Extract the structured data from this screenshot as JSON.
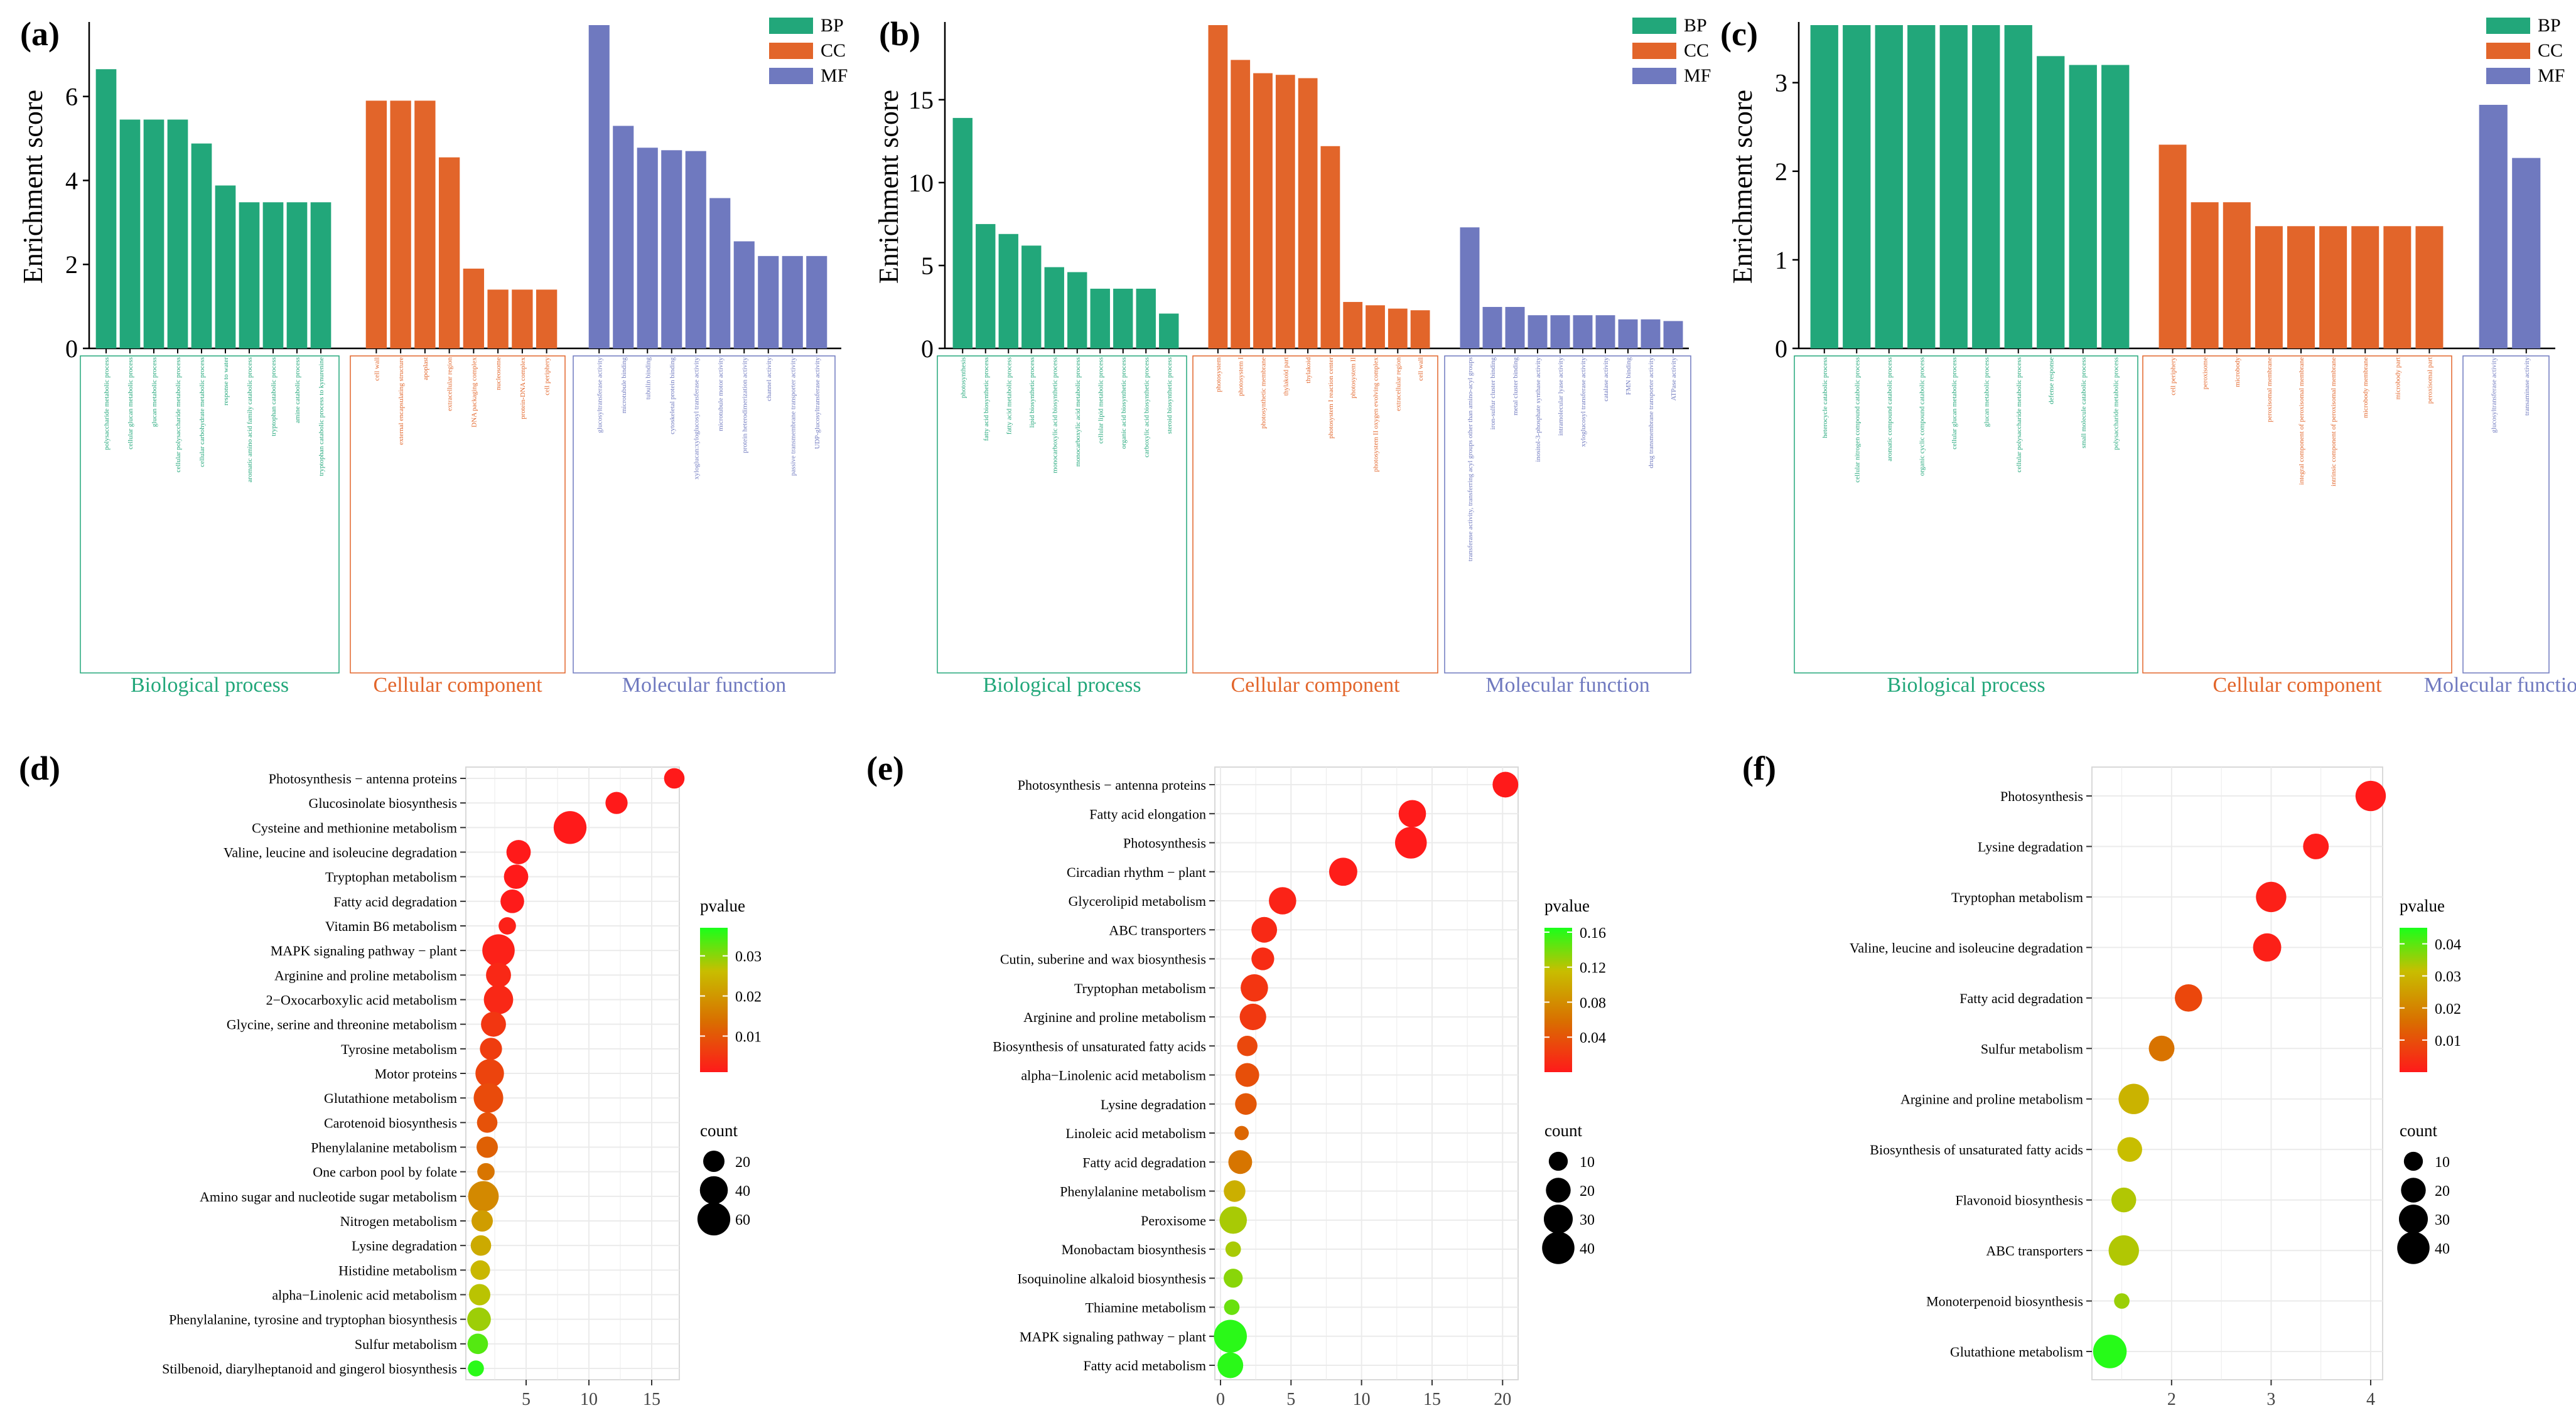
{
  "colors": {
    "BP": "#22a77a",
    "CC": "#e2652a",
    "MF": "#6f79bf",
    "axis": "#000000",
    "grid": "#ebebeb",
    "panel_border": "#d9d9d9",
    "pvalue_low": "#ff1a1a",
    "pvalue_mid": "#d9a300",
    "pvalue_high": "#1aff1a"
  },
  "legend_labels": {
    "BP": "BP",
    "CC": "CC",
    "MF": "MF"
  },
  "section_labels": {
    "bp": "Biological process",
    "cc": "Cellular component",
    "mf": "Molecular function"
  },
  "chart_data": [
    {
      "panel": "(a)",
      "type": "bar",
      "ylabel": "Enrichment score",
      "ylim": [
        0,
        7.7
      ],
      "yticks": [
        0,
        2,
        4,
        6
      ],
      "series": [
        {
          "name": "BP",
          "categories": [
            "polysaccharide metabolic process",
            "cellular glucan metabolic process",
            "glucan metabolic process",
            "cellular polysaccharide metabolic process",
            "cellular carbohydrate metabolic process",
            "response to water",
            "aromatic amino acid family catabolic process",
            "tryptophan catabolic process",
            "amine catabolic process",
            "tryptophan catabolic process to kynurenine"
          ],
          "values": [
            6.65,
            5.45,
            5.45,
            5.45,
            4.88,
            3.88,
            3.48,
            3.48,
            3.48,
            3.48
          ]
        },
        {
          "name": "CC",
          "categories": [
            "cell wall",
            "external encapsulating structure",
            "apoplast",
            "extracellular region",
            "DNA packaging complex",
            "nucleosome",
            "protein-DNA complex",
            "cell periphery"
          ],
          "values": [
            5.9,
            5.9,
            5.9,
            4.55,
            1.9,
            1.4,
            1.4,
            1.4
          ]
        },
        {
          "name": "MF",
          "categories": [
            "glucosyltransferase activity",
            "microtubule binding",
            "tubulin binding",
            "cytoskeletal protein binding",
            "xyloglucan:xyloglucosyl transferase activity",
            "microtubule motor activity",
            "protein heterodimerization activity",
            "channel activity",
            "passive transmembrane transporter activity",
            "UDP-glucosyltransferase activity"
          ],
          "values": [
            7.7,
            5.3,
            4.78,
            4.72,
            4.7,
            3.58,
            2.55,
            2.2,
            2.2,
            2.2
          ]
        }
      ]
    },
    {
      "panel": "(b)",
      "type": "bar",
      "ylabel": "Enrichment score",
      "ylim": [
        0,
        19.5
      ],
      "yticks": [
        0,
        5,
        10,
        15
      ],
      "series": [
        {
          "name": "BP",
          "categories": [
            "photosynthesis",
            "fatty acid biosynthetic process",
            "fatty acid metabolic process",
            "lipid biosynthetic process",
            "monocarboxylic acid biosynthetic process",
            "monocarboxylic acid metabolic process",
            "cellular lipid metabolic process",
            "organic acid biosynthetic process",
            "carboxylic acid biosynthetic process",
            "steroid biosynthetic process"
          ],
          "values": [
            13.9,
            7.5,
            6.9,
            6.2,
            4.9,
            4.6,
            3.6,
            3.6,
            3.6,
            2.1
          ]
        },
        {
          "name": "CC",
          "categories": [
            "photosystem",
            "photosystem I",
            "photosynthetic membrane",
            "thylakoid part",
            "thylakoid",
            "photosystem I reaction center",
            "photosystem II",
            "photosystem II oxygen evolving complex",
            "extracellular region",
            "cell wall"
          ],
          "values": [
            19.5,
            17.4,
            16.6,
            16.5,
            16.3,
            12.2,
            2.8,
            2.6,
            2.4,
            2.3
          ]
        },
        {
          "name": "MF",
          "categories": [
            "transferase activity, transferring acyl groups other than amino-acyl groups",
            "iron-sulfur cluster binding",
            "metal cluster binding",
            "inositol-3-phosphate synthase activity",
            "intramolecular lyase activity",
            "xyloglucosyl transferase activity",
            "catalase activity",
            "FMN binding",
            "drug transmembrane transporter activity",
            "ATPase activity"
          ],
          "values": [
            7.3,
            2.5,
            2.5,
            2.0,
            2.0,
            2.0,
            2.0,
            1.75,
            1.75,
            1.65
          ]
        }
      ]
    },
    {
      "panel": "(c)",
      "type": "bar",
      "ylabel": "Enrichment score",
      "ylim": [
        0,
        3.65
      ],
      "yticks": [
        0,
        1,
        2,
        3
      ],
      "series": [
        {
          "name": "BP",
          "categories": [
            "heterocycle catabolic process",
            "cellular nitrogen compound catabolic process",
            "aromatic compound catabolic process",
            "organic cyclic compound catabolic process",
            "cellular glucan metabolic process",
            "glucan metabolic process",
            "cellular polysaccharide metabolic process",
            "defense response",
            "small molecule catabolic process",
            "polysaccharide metabolic process"
          ],
          "values": [
            3.65,
            3.65,
            3.65,
            3.65,
            3.65,
            3.65,
            3.65,
            3.3,
            3.2,
            3.2
          ]
        },
        {
          "name": "CC",
          "categories": [
            "cell periphery",
            "peroxisome",
            "microbody",
            "peroxisomal membrane",
            "integral component of peroxisomal membrane",
            "intrinsic component of peroxisomal membrane",
            "microbody membrane",
            "microbody part",
            "peroxisomal part"
          ],
          "values": [
            2.3,
            1.65,
            1.65,
            1.38,
            1.38,
            1.38,
            1.38,
            1.38,
            1.38
          ]
        },
        {
          "name": "MF",
          "categories": [
            "glucosyltransferase activity",
            "transaminase activity"
          ],
          "values": [
            2.75,
            2.15
          ]
        }
      ]
    },
    {
      "panel": "(d)",
      "type": "scatter",
      "xlim": [
        0.2,
        17.2
      ],
      "xticks": [
        5,
        10,
        15
      ],
      "color_title": "pvalue",
      "size_title": "count",
      "color_ticks": [
        0.01,
        0.02,
        0.03
      ],
      "color_range": [
        0.001,
        0.037
      ],
      "size_ticks": [
        20,
        40,
        60
      ],
      "size_range": [
        5,
        65
      ],
      "points": [
        {
          "label": "Photosynthesis − antenna proteins",
          "x": 16.8,
          "count": 18,
          "p": 0.0005
        },
        {
          "label": "Glucosinolate biosynthesis",
          "x": 12.2,
          "count": 22,
          "p": 0.0008
        },
        {
          "label": "Cysteine and methionine metabolism",
          "x": 8.5,
          "count": 60,
          "p": 0.001
        },
        {
          "label": "Valine, leucine and isoleucine degradation",
          "x": 4.4,
          "count": 28,
          "p": 0.001
        },
        {
          "label": "Tryptophan metabolism",
          "x": 4.2,
          "count": 28,
          "p": 0.001
        },
        {
          "label": "Fatty acid degradation",
          "x": 3.9,
          "count": 26,
          "p": 0.0012
        },
        {
          "label": "Vitamin B6 metabolism",
          "x": 3.5,
          "count": 12,
          "p": 0.002
        },
        {
          "label": "MAPK signaling pathway − plant",
          "x": 2.8,
          "count": 58,
          "p": 0.002
        },
        {
          "label": "Arginine and proline metabolism",
          "x": 2.8,
          "count": 30,
          "p": 0.003
        },
        {
          "label": "2−Oxocarboxylic acid metabolism",
          "x": 2.8,
          "count": 45,
          "p": 0.003
        },
        {
          "label": "Glycine, serine and threonine metabolism",
          "x": 2.4,
          "count": 30,
          "p": 0.005
        },
        {
          "label": "Tyrosine metabolism",
          "x": 2.2,
          "count": 22,
          "p": 0.006
        },
        {
          "label": "Motor proteins",
          "x": 2.1,
          "count": 42,
          "p": 0.007
        },
        {
          "label": "Glutathione metabolism",
          "x": 2.0,
          "count": 46,
          "p": 0.008
        },
        {
          "label": "Carotenoid biosynthesis",
          "x": 1.9,
          "count": 18,
          "p": 0.009
        },
        {
          "label": "Phenylalanine metabolism",
          "x": 1.9,
          "count": 20,
          "p": 0.011
        },
        {
          "label": "One carbon pool by folate",
          "x": 1.8,
          "count": 12,
          "p": 0.014
        },
        {
          "label": "Amino sugar and nucleotide sugar metabolism",
          "x": 1.6,
          "count": 50,
          "p": 0.017
        },
        {
          "label": "Nitrogen metabolism",
          "x": 1.5,
          "count": 20,
          "p": 0.02
        },
        {
          "label": "Lysine degradation",
          "x": 1.4,
          "count": 18,
          "p": 0.022
        },
        {
          "label": "Histidine metabolism",
          "x": 1.35,
          "count": 16,
          "p": 0.024
        },
        {
          "label": "alpha−Linolenic acid metabolism",
          "x": 1.3,
          "count": 20,
          "p": 0.026
        },
        {
          "label": "Phenylalanine, tyrosine and tryptophan biosynthesis",
          "x": 1.25,
          "count": 26,
          "p": 0.028
        },
        {
          "label": "Sulfur metabolism",
          "x": 1.15,
          "count": 18,
          "p": 0.033
        },
        {
          "label": "Stilbenoid, diarylheptanoid and gingerol biosynthesis",
          "x": 1.0,
          "count": 10,
          "p": 0.036
        }
      ]
    },
    {
      "panel": "(e)",
      "type": "scatter",
      "xlim": [
        -0.4,
        21.1
      ],
      "xticks": [
        0,
        5,
        10,
        15,
        20
      ],
      "color_title": "pvalue",
      "size_title": "count",
      "color_ticks": [
        0.04,
        0.08,
        0.12,
        0.16
      ],
      "color_range": [
        0.0,
        0.165
      ],
      "size_ticks": [
        10,
        20,
        30,
        40
      ],
      "size_range": [
        3,
        45
      ],
      "points": [
        {
          "label": "Photosynthesis − antenna proteins",
          "x": 20.2,
          "count": 22,
          "p": 0.0001
        },
        {
          "label": "Fatty acid elongation",
          "x": 13.6,
          "count": 26,
          "p": 0.0005
        },
        {
          "label": "Photosynthesis",
          "x": 13.5,
          "count": 38,
          "p": 0.0005
        },
        {
          "label": "Circadian rhythm − plant",
          "x": 8.7,
          "count": 28,
          "p": 0.002
        },
        {
          "label": "Glycerolipid metabolism",
          "x": 4.4,
          "count": 26,
          "p": 0.006
        },
        {
          "label": "ABC transporters",
          "x": 3.1,
          "count": 22,
          "p": 0.01
        },
        {
          "label": "Cutin, suberine and wax biosynthesis",
          "x": 3.0,
          "count": 16,
          "p": 0.012
        },
        {
          "label": "Tryptophan metabolism",
          "x": 2.4,
          "count": 26,
          "p": 0.018
        },
        {
          "label": "Arginine and proline metabolism",
          "x": 2.3,
          "count": 24,
          "p": 0.02
        },
        {
          "label": "Biosynthesis of unsaturated fatty acids",
          "x": 1.9,
          "count": 12,
          "p": 0.03
        },
        {
          "label": "alpha−Linolenic acid metabolism",
          "x": 1.9,
          "count": 18,
          "p": 0.035
        },
        {
          "label": "Lysine degradation",
          "x": 1.8,
          "count": 14,
          "p": 0.04
        },
        {
          "label": "Linoleic acid metabolism",
          "x": 1.5,
          "count": 5,
          "p": 0.05
        },
        {
          "label": "Fatty acid degradation",
          "x": 1.4,
          "count": 18,
          "p": 0.06
        },
        {
          "label": "Phenylalanine metabolism",
          "x": 1.0,
          "count": 14,
          "p": 0.1
        },
        {
          "label": "Peroxisome",
          "x": 0.9,
          "count": 26,
          "p": 0.12
        },
        {
          "label": "Monobactam biosynthesis",
          "x": 0.9,
          "count": 6,
          "p": 0.12
        },
        {
          "label": "Isoquinoline alkaloid biosynthesis",
          "x": 0.9,
          "count": 10,
          "p": 0.13
        },
        {
          "label": "Thiamine metabolism",
          "x": 0.8,
          "count": 6,
          "p": 0.14
        },
        {
          "label": "MAPK signaling pathway − plant",
          "x": 0.7,
          "count": 42,
          "p": 0.16
        },
        {
          "label": "Fatty acid metabolism",
          "x": 0.7,
          "count": 22,
          "p": 0.16
        }
      ]
    },
    {
      "panel": "(f)",
      "type": "scatter",
      "xlim": [
        1.2,
        4.12
      ],
      "xticks": [
        2,
        3,
        4
      ],
      "color_title": "pvalue",
      "size_title": "count",
      "color_ticks": [
        0.01,
        0.02,
        0.03,
        0.04
      ],
      "color_range": [
        0.0,
        0.045
      ],
      "size_ticks": [
        10,
        20,
        30,
        40
      ],
      "size_range": [
        3,
        45
      ],
      "points": [
        {
          "label": "Photosynthesis",
          "x": 4.0,
          "count": 34,
          "p": 0.0001
        },
        {
          "label": "Lysine degradation",
          "x": 3.45,
          "count": 22,
          "p": 0.0005
        },
        {
          "label": "Tryptophan metabolism",
          "x": 3.0,
          "count": 34,
          "p": 0.001
        },
        {
          "label": "Valine, leucine and isoleucine degradation",
          "x": 2.96,
          "count": 28,
          "p": 0.001
        },
        {
          "label": "Fatty acid degradation",
          "x": 2.17,
          "count": 26,
          "p": 0.008
        },
        {
          "label": "Sulfur metabolism",
          "x": 1.9,
          "count": 22,
          "p": 0.016
        },
        {
          "label": "Arginine and proline metabolism",
          "x": 1.62,
          "count": 34,
          "p": 0.028
        },
        {
          "label": "Biosynthesis of unsaturated fatty acids",
          "x": 1.58,
          "count": 20,
          "p": 0.03
        },
        {
          "label": "Flavonoid biosynthesis",
          "x": 1.52,
          "count": 20,
          "p": 0.032
        },
        {
          "label": "ABC transporters",
          "x": 1.52,
          "count": 34,
          "p": 0.032
        },
        {
          "label": "Monoterpenoid biosynthesis",
          "x": 1.5,
          "count": 6,
          "p": 0.034
        },
        {
          "label": "Glutathione metabolism",
          "x": 1.38,
          "count": 44,
          "p": 0.044
        }
      ]
    }
  ]
}
